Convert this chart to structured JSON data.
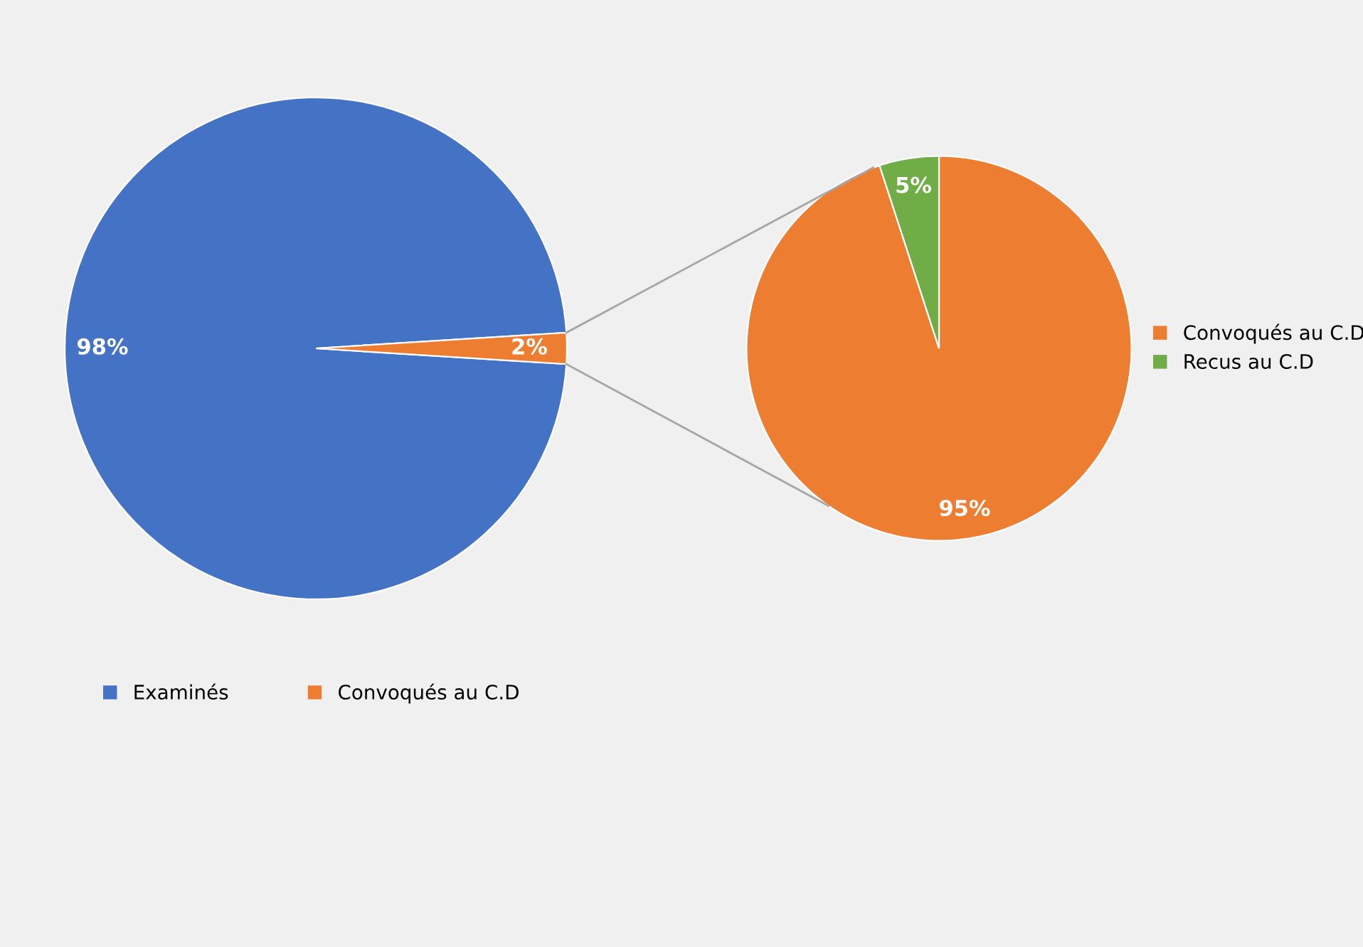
{
  "chart_data": [
    {
      "type": "pie",
      "categories": [
        "Examinés",
        "Convoqués au C.D"
      ],
      "values": [
        98,
        2
      ],
      "colors": [
        "#4472c4",
        "#ed7d31"
      ],
      "value_labels": [
        "98%",
        "2%"
      ],
      "legend": "bottom"
    },
    {
      "type": "pie",
      "categories": [
        "Convoqués au C.D",
        "Recus au C.D"
      ],
      "values": [
        95,
        5
      ],
      "colors": [
        "#ed7d31",
        "#70ad47"
      ],
      "value_labels": [
        "95%",
        "5%"
      ],
      "legend": "right"
    }
  ]
}
